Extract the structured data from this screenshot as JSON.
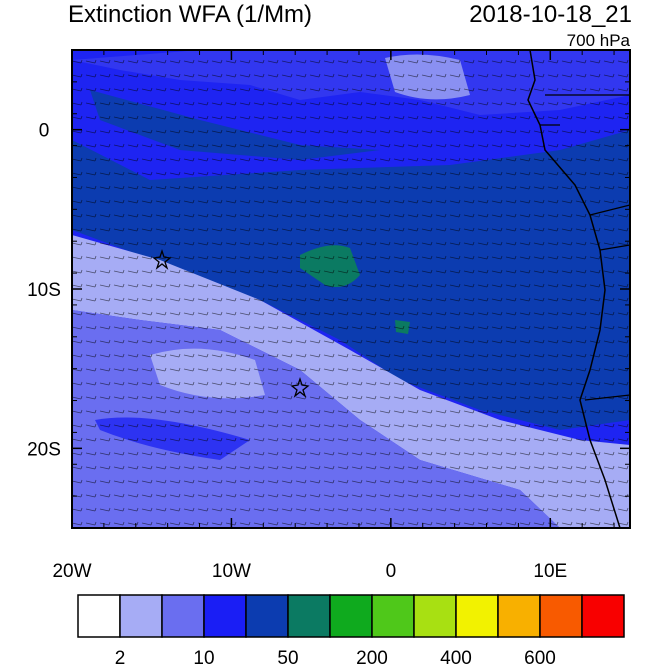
{
  "header": {
    "title": "Extinction WFA (1/Mm)",
    "time": "2018-10-18_21",
    "level": "700 hPa"
  },
  "map": {
    "xlim": [
      -20,
      15
    ],
    "ylim": [
      -25,
      5
    ],
    "xticks": [
      {
        "value": -20,
        "label": "20W"
      },
      {
        "value": -10,
        "label": "10W"
      },
      0,
      {
        "value": 10,
        "label": "10E"
      }
    ],
    "yticks": [
      0,
      {
        "value": -10,
        "label": "10S"
      },
      {
        "value": -20,
        "label": "20S"
      }
    ]
  },
  "colorbar": {
    "colors": [
      "#ffffff",
      "#a6acf5",
      "#6a6ef0",
      "#1a1ef5",
      "#0c3cb0",
      "#0b7a62",
      "#0faa1e",
      "#4fc81a",
      "#a8e012",
      "#f2f200",
      "#f8b000",
      "#f85a00",
      "#f80000"
    ],
    "labels": [
      "2",
      "10",
      "50",
      "200",
      "400",
      "600"
    ]
  }
}
